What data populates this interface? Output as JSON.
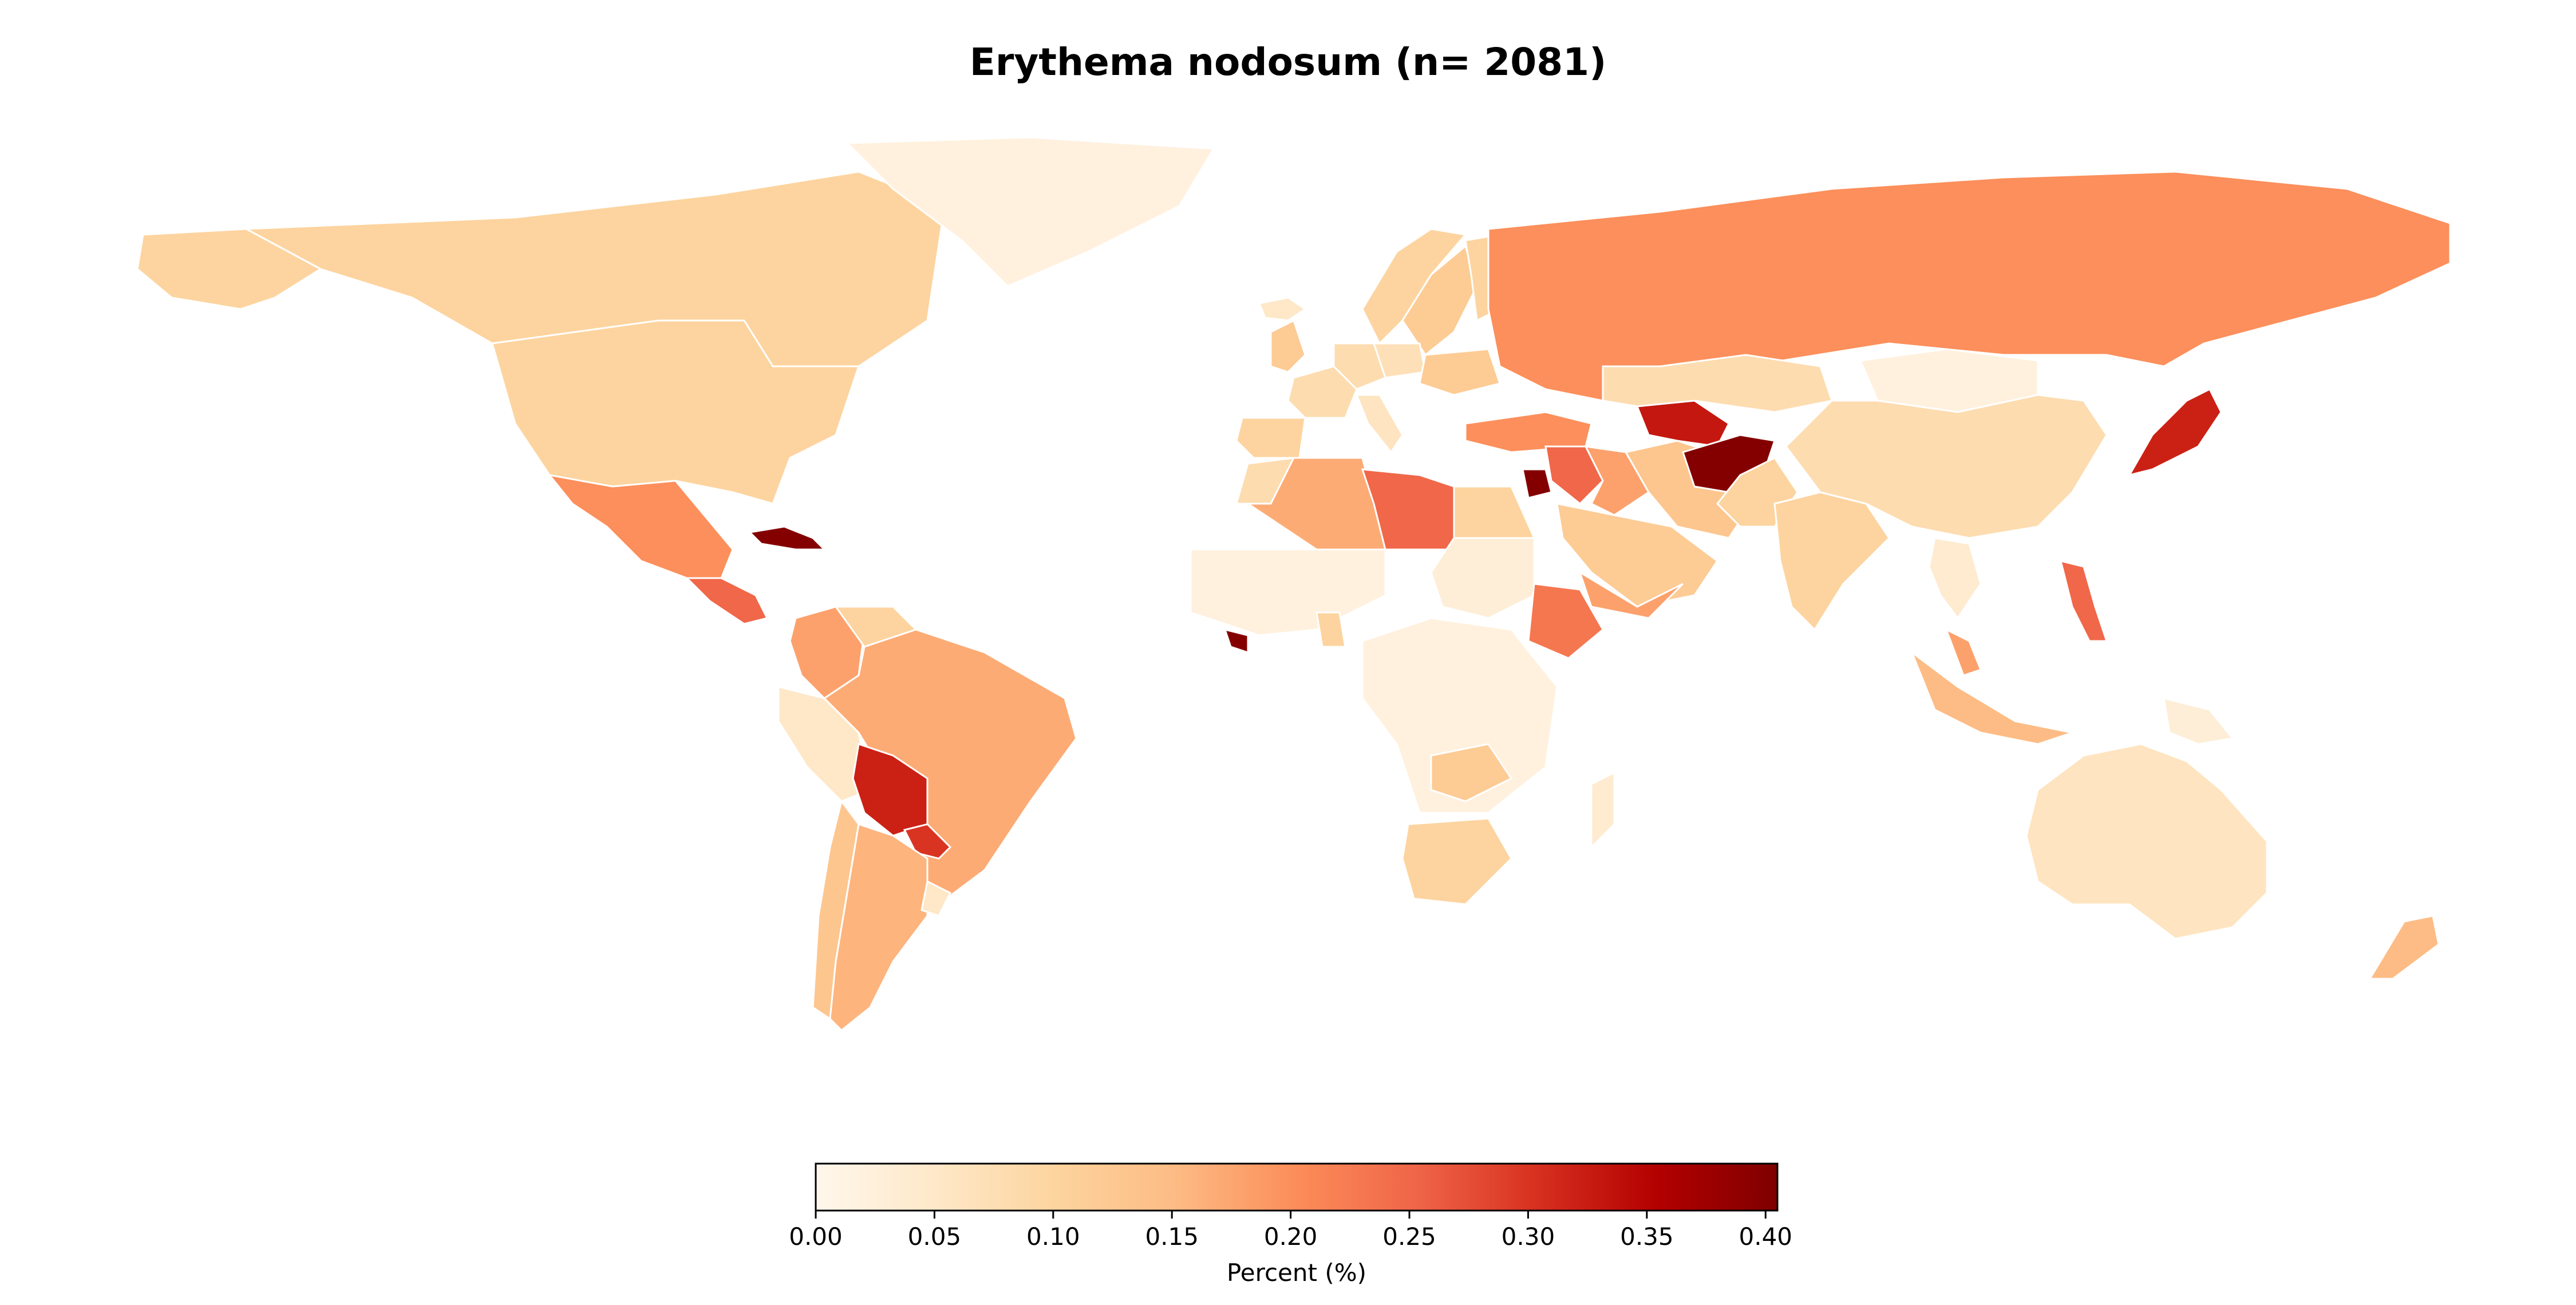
{
  "chart_data": {
    "type": "choropleth",
    "title": "Erythema nodosum (n= 2081)",
    "colorbar": {
      "label": "Percent (%)",
      "range": [
        0,
        0.405
      ],
      "ticks": [
        "0.00",
        "0.05",
        "0.10",
        "0.15",
        "0.20",
        "0.25",
        "0.30",
        "0.35",
        "0.40"
      ],
      "tick_values": [
        0,
        0.05,
        0.1,
        0.15,
        0.2,
        0.25,
        0.3,
        0.35,
        0.4
      ],
      "colormap": "OrRd"
    },
    "regions": [
      {
        "name": "Canada",
        "value": 0.1
      },
      {
        "name": "Alaska (USA)",
        "value": 0.1
      },
      {
        "name": "United States",
        "value": 0.1
      },
      {
        "name": "Greenland",
        "value": 0.02
      },
      {
        "name": "Mexico",
        "value": 0.2
      },
      {
        "name": "Guatemala",
        "value": 0.25
      },
      {
        "name": "Cuba",
        "value": 0.4
      },
      {
        "name": "Colombia",
        "value": 0.18
      },
      {
        "name": "Venezuela",
        "value": 0.1
      },
      {
        "name": "Peru",
        "value": 0.05
      },
      {
        "name": "Brazil",
        "value": 0.17
      },
      {
        "name": "Bolivia",
        "value": 0.32
      },
      {
        "name": "Paraguay",
        "value": 0.3
      },
      {
        "name": "Chile",
        "value": 0.13
      },
      {
        "name": "Argentina",
        "value": 0.16
      },
      {
        "name": "Uruguay",
        "value": 0.05
      },
      {
        "name": "Iceland",
        "value": 0.05
      },
      {
        "name": "Norway",
        "value": 0.1
      },
      {
        "name": "Sweden",
        "value": 0.12
      },
      {
        "name": "Finland",
        "value": 0.1
      },
      {
        "name": "United Kingdom",
        "value": 0.12
      },
      {
        "name": "France",
        "value": 0.08
      },
      {
        "name": "Spain",
        "value": 0.1
      },
      {
        "name": "Germany",
        "value": 0.08
      },
      {
        "name": "Poland",
        "value": 0.07
      },
      {
        "name": "Italy",
        "value": 0.06
      },
      {
        "name": "Ukraine",
        "value": 0.12
      },
      {
        "name": "Russia",
        "value": 0.2
      },
      {
        "name": "Turkey",
        "value": 0.2
      },
      {
        "name": "Syria",
        "value": 0.25
      },
      {
        "name": "Jordan",
        "value": 0.4
      },
      {
        "name": "Iraq",
        "value": 0.18
      },
      {
        "name": "Iran",
        "value": 0.13
      },
      {
        "name": "Saudi Arabia",
        "value": 0.12
      },
      {
        "name": "Yemen",
        "value": 0.18
      },
      {
        "name": "Turkmenistan",
        "value": 0.33
      },
      {
        "name": "Kazakhstan",
        "value": 0.08
      },
      {
        "name": "Afghanistan",
        "value": 0.4
      },
      {
        "name": "Pakistan",
        "value": 0.1
      },
      {
        "name": "India",
        "value": 0.1
      },
      {
        "name": "Mongolia",
        "value": 0.02
      },
      {
        "name": "China",
        "value": 0.08
      },
      {
        "name": "Japan",
        "value": 0.32
      },
      {
        "name": "Philippines",
        "value": 0.25
      },
      {
        "name": "Indonesia",
        "value": 0.15
      },
      {
        "name": "Malaysia",
        "value": 0.18
      },
      {
        "name": "Thailand",
        "value": 0.04
      },
      {
        "name": "Papua New Guinea",
        "value": 0.03
      },
      {
        "name": "Australia",
        "value": 0.06
      },
      {
        "name": "New Zealand",
        "value": 0.15
      },
      {
        "name": "Morocco",
        "value": 0.08
      },
      {
        "name": "Algeria",
        "value": 0.17
      },
      {
        "name": "Libya",
        "value": 0.25
      },
      {
        "name": "Egypt",
        "value": 0.1
      },
      {
        "name": "Niger / Sahel",
        "value": 0.02
      },
      {
        "name": "Sudan",
        "value": 0.03
      },
      {
        "name": "Ethiopia",
        "value": 0.23
      },
      {
        "name": "Liberia",
        "value": 0.4
      },
      {
        "name": "Ghana / Togo",
        "value": 0.1
      },
      {
        "name": "Central Africa",
        "value": 0.02
      },
      {
        "name": "Zambia",
        "value": 0.12
      },
      {
        "name": "South Africa",
        "value": 0.1
      },
      {
        "name": "Madagascar",
        "value": 0.04
      }
    ]
  }
}
